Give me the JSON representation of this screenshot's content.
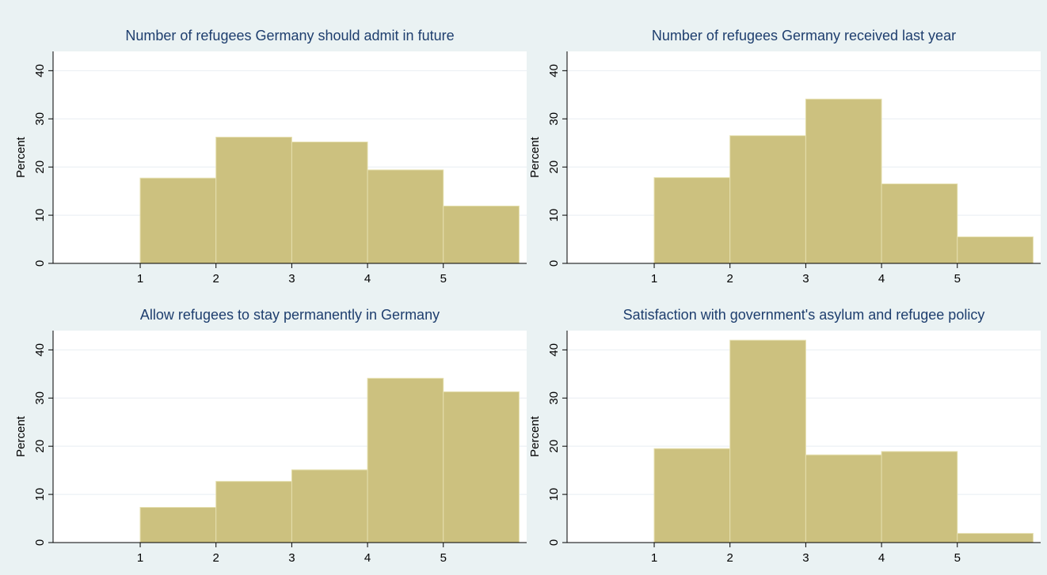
{
  "chart_data": [
    {
      "type": "bar",
      "title": "Number of refugees Germany should admit in future",
      "ylabel": "Percent",
      "xlabel": "",
      "bins": [
        [
          1,
          2
        ],
        [
          2,
          3
        ],
        [
          3,
          4
        ],
        [
          4,
          5
        ],
        [
          5,
          6
        ]
      ],
      "values": [
        17.7,
        26.2,
        25.2,
        19.4,
        11.9
      ],
      "xticks": [
        1,
        2,
        3,
        4,
        5
      ],
      "yticks": [
        0,
        10,
        20,
        30,
        40
      ],
      "xlim": [
        -0.15,
        6.1
      ],
      "ylim": [
        0,
        44
      ],
      "grid": true,
      "colors": {
        "bar": "#ccc17f",
        "bar_edge": "#e5dfae",
        "grid": "#e8eef2",
        "plot_bg": "#ffffff",
        "title": "#1e3e6e"
      }
    },
    {
      "type": "bar",
      "title": "Number of refugees Germany received last year",
      "ylabel": "Percent",
      "xlabel": "",
      "bins": [
        [
          1,
          2
        ],
        [
          2,
          3
        ],
        [
          3,
          4
        ],
        [
          4,
          5
        ],
        [
          5,
          6
        ]
      ],
      "values": [
        17.8,
        26.5,
        34.1,
        16.5,
        5.5
      ],
      "xticks": [
        1,
        2,
        3,
        4,
        5
      ],
      "yticks": [
        0,
        10,
        20,
        30,
        40
      ],
      "xlim": [
        -0.15,
        6.1
      ],
      "ylim": [
        0,
        44
      ],
      "grid": true,
      "colors": {
        "bar": "#ccc17f",
        "bar_edge": "#e5dfae",
        "grid": "#e8eef2",
        "plot_bg": "#ffffff",
        "title": "#1e3e6e"
      }
    },
    {
      "type": "bar",
      "title": "Allow refugees to stay permanently in Germany",
      "ylabel": "Percent",
      "xlabel": "",
      "bins": [
        [
          1,
          2
        ],
        [
          2,
          3
        ],
        [
          3,
          4
        ],
        [
          4,
          5
        ],
        [
          5,
          6
        ]
      ],
      "values": [
        7.3,
        12.7,
        15.1,
        34.1,
        31.3
      ],
      "xticks": [
        1,
        2,
        3,
        4,
        5
      ],
      "yticks": [
        0,
        10,
        20,
        30,
        40
      ],
      "xlim": [
        -0.15,
        6.1
      ],
      "ylim": [
        0,
        44
      ],
      "grid": true,
      "colors": {
        "bar": "#ccc17f",
        "bar_edge": "#e5dfae",
        "grid": "#e8eef2",
        "plot_bg": "#ffffff",
        "title": "#1e3e6e"
      }
    },
    {
      "type": "bar",
      "title": "Satisfaction with government's asylum and refugee policy",
      "ylabel": "Percent",
      "xlabel": "",
      "bins": [
        [
          1,
          2
        ],
        [
          2,
          3
        ],
        [
          3,
          4
        ],
        [
          4,
          5
        ],
        [
          5,
          6
        ]
      ],
      "values": [
        19.5,
        42.0,
        18.2,
        18.9,
        1.9
      ],
      "xticks": [
        1,
        2,
        3,
        4,
        5
      ],
      "yticks": [
        0,
        10,
        20,
        30,
        40
      ],
      "xlim": [
        -0.15,
        6.1
      ],
      "ylim": [
        0,
        44
      ],
      "grid": true,
      "colors": {
        "bar": "#ccc17f",
        "bar_edge": "#e5dfae",
        "grid": "#e8eef2",
        "plot_bg": "#ffffff",
        "title": "#1e3e6e"
      }
    }
  ]
}
